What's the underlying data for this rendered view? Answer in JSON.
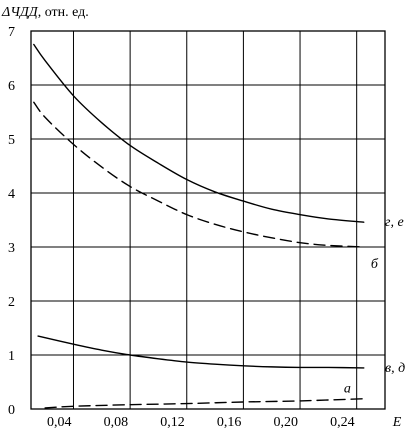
{
  "chart_data": {
    "type": "line",
    "ylabel": "ΔЧДД, отн. ед.",
    "ylabel_symbol": "ΔЧДД",
    "ylabel_unit": ", отн. ед.",
    "xlabel": "E",
    "xlim": [
      0.01,
      0.26
    ],
    "ylim": [
      0,
      7
    ],
    "x_ticks": [
      {
        "value": 0.04,
        "label": "0,04"
      },
      {
        "value": 0.08,
        "label": "0,08"
      },
      {
        "value": 0.12,
        "label": "0,12"
      },
      {
        "value": 0.16,
        "label": "0,16"
      },
      {
        "value": 0.2,
        "label": "0,20"
      },
      {
        "value": 0.24,
        "label": "0,24"
      }
    ],
    "x_grid": [
      0.04,
      0.08,
      0.12,
      0.16,
      0.2,
      0.24
    ],
    "y_ticks": [
      {
        "value": 0,
        "label": "0"
      },
      {
        "value": 1,
        "label": "1"
      },
      {
        "value": 2,
        "label": "2"
      },
      {
        "value": 3,
        "label": "3"
      },
      {
        "value": 4,
        "label": "4"
      },
      {
        "value": 5,
        "label": "5"
      },
      {
        "value": 6,
        "label": "6"
      },
      {
        "value": 7,
        "label": "7"
      }
    ],
    "grid": true,
    "series": [
      {
        "name": "г, е",
        "style": "solid",
        "label_at": [
          0.26,
          3.48
        ],
        "points": [
          [
            0.012,
            6.75
          ],
          [
            0.02,
            6.45
          ],
          [
            0.04,
            5.8
          ],
          [
            0.06,
            5.3
          ],
          [
            0.08,
            4.88
          ],
          [
            0.1,
            4.55
          ],
          [
            0.12,
            4.25
          ],
          [
            0.14,
            4.02
          ],
          [
            0.16,
            3.85
          ],
          [
            0.18,
            3.7
          ],
          [
            0.2,
            3.6
          ],
          [
            0.22,
            3.52
          ],
          [
            0.245,
            3.46
          ]
        ]
      },
      {
        "name": "б",
        "style": "dashed",
        "label_at": [
          0.25,
          2.7
        ],
        "points": [
          [
            0.012,
            5.68
          ],
          [
            0.02,
            5.4
          ],
          [
            0.04,
            4.9
          ],
          [
            0.06,
            4.48
          ],
          [
            0.08,
            4.12
          ],
          [
            0.1,
            3.85
          ],
          [
            0.12,
            3.6
          ],
          [
            0.14,
            3.42
          ],
          [
            0.16,
            3.28
          ],
          [
            0.18,
            3.17
          ],
          [
            0.2,
            3.08
          ],
          [
            0.22,
            3.03
          ],
          [
            0.245,
            3.0
          ]
        ]
      },
      {
        "name": "в, д",
        "style": "solid",
        "label_at": [
          0.26,
          0.78
        ],
        "points": [
          [
            0.015,
            1.35
          ],
          [
            0.04,
            1.2
          ],
          [
            0.06,
            1.09
          ],
          [
            0.08,
            1.0
          ],
          [
            0.1,
            0.93
          ],
          [
            0.12,
            0.87
          ],
          [
            0.14,
            0.83
          ],
          [
            0.16,
            0.8
          ],
          [
            0.18,
            0.78
          ],
          [
            0.2,
            0.77
          ],
          [
            0.22,
            0.77
          ],
          [
            0.245,
            0.76
          ]
        ]
      },
      {
        "name": "а",
        "style": "dashed",
        "label_at": [
          0.231,
          0.4
        ],
        "points": [
          [
            0.02,
            0.02
          ],
          [
            0.04,
            0.05
          ],
          [
            0.08,
            0.08
          ],
          [
            0.12,
            0.1
          ],
          [
            0.16,
            0.13
          ],
          [
            0.2,
            0.15
          ],
          [
            0.245,
            0.19
          ]
        ]
      }
    ]
  }
}
